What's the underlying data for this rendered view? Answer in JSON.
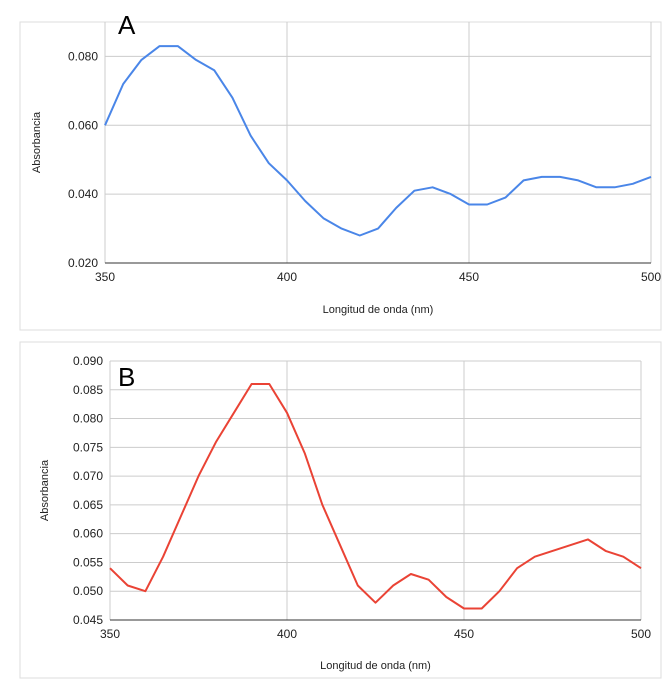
{
  "chart_data": [
    {
      "type": "line",
      "panel_label": "A",
      "xlabel": "Longitud de onda (nm)",
      "ylabel": "Absorbancia",
      "xlim": [
        350,
        500
      ],
      "ylim": [
        0.02,
        0.09
      ],
      "xticks": [
        "350",
        "400",
        "450",
        "500"
      ],
      "yticks": [
        "0.020",
        "0.040",
        "0.060",
        "0.080"
      ],
      "grid": true,
      "series": [
        {
          "color": "#4a86e8",
          "x": [
            350,
            355,
            360,
            365,
            370,
            375,
            380,
            385,
            390,
            395,
            400,
            405,
            410,
            415,
            420,
            425,
            430,
            435,
            440,
            445,
            450,
            455,
            460,
            465,
            470,
            475,
            480,
            485,
            490,
            495,
            500
          ],
          "y": [
            0.06,
            0.072,
            0.079,
            0.083,
            0.083,
            0.079,
            0.076,
            0.068,
            0.057,
            0.049,
            0.044,
            0.038,
            0.033,
            0.03,
            0.028,
            0.03,
            0.036,
            0.041,
            0.042,
            0.04,
            0.037,
            0.037,
            0.039,
            0.044,
            0.045,
            0.045,
            0.044,
            0.042,
            0.042,
            0.043,
            0.045
          ]
        }
      ]
    },
    {
      "type": "line",
      "panel_label": "B",
      "xlabel": "Longitud de onda (nm)",
      "ylabel": "Absorbancia",
      "xlim": [
        350,
        500
      ],
      "ylim": [
        0.045,
        0.09
      ],
      "xticks": [
        "350",
        "400",
        "450",
        "500"
      ],
      "yticks": [
        "0.045",
        "0.050",
        "0.055",
        "0.060",
        "0.065",
        "0.070",
        "0.075",
        "0.080",
        "0.085",
        "0.090"
      ],
      "grid": true,
      "series": [
        {
          "color": "#ea4335",
          "x": [
            350,
            355,
            360,
            365,
            370,
            375,
            380,
            385,
            390,
            395,
            400,
            405,
            410,
            415,
            420,
            425,
            430,
            435,
            440,
            445,
            450,
            455,
            460,
            465,
            470,
            475,
            480,
            485,
            490,
            495,
            500
          ],
          "y": [
            0.054,
            0.051,
            0.05,
            0.056,
            0.063,
            0.07,
            0.076,
            0.081,
            0.086,
            0.086,
            0.081,
            0.074,
            0.065,
            0.058,
            0.051,
            0.048,
            0.051,
            0.053,
            0.052,
            0.049,
            0.047,
            0.047,
            0.05,
            0.054,
            0.056,
            0.057,
            0.058,
            0.059,
            0.057,
            0.056,
            0.054
          ]
        }
      ]
    }
  ]
}
